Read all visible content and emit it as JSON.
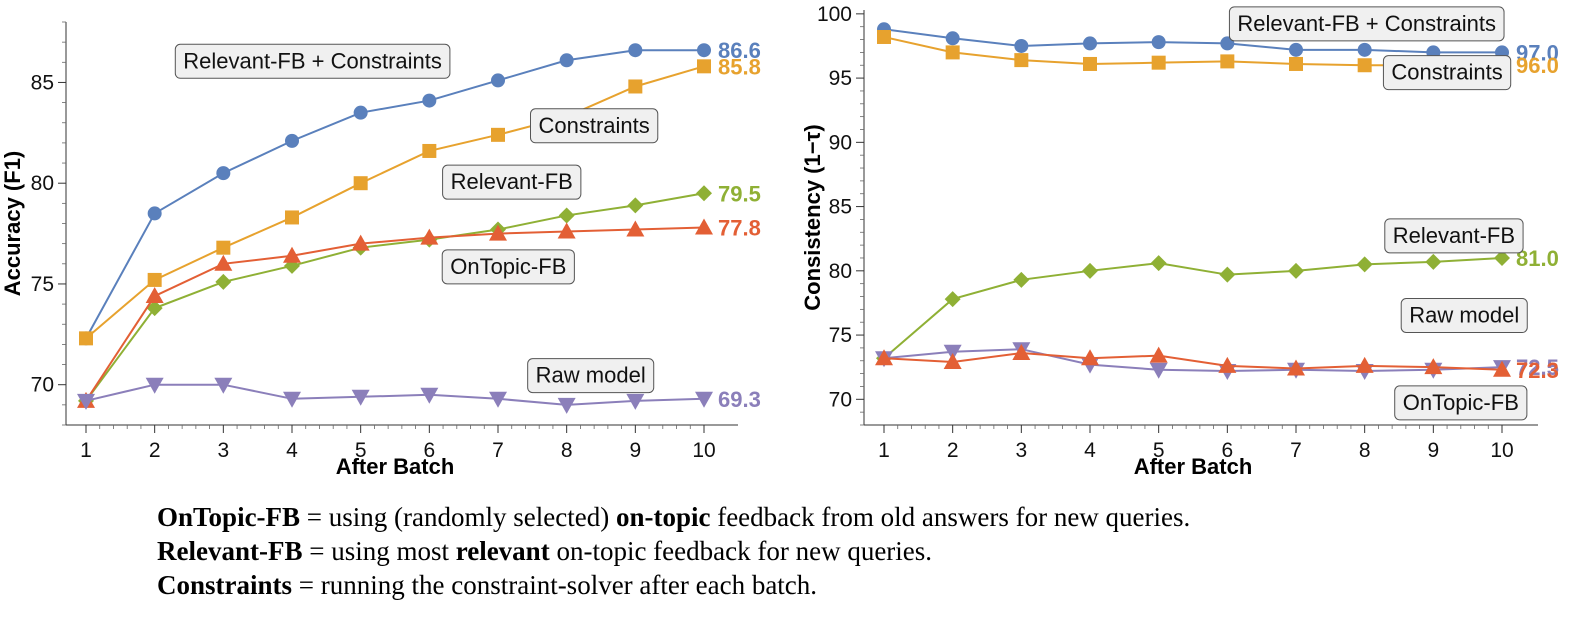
{
  "colors": {
    "blue": "#5a80bc",
    "orange": "#e7a22e",
    "green": "#8fb035",
    "red": "#e35f35",
    "purple": "#8b7fba"
  },
  "chart_data": [
    {
      "type": "line",
      "ylabel": "Accuracy (F1)",
      "xlabel": "After Batch",
      "x": [
        1,
        2,
        3,
        4,
        5,
        6,
        7,
        8,
        9,
        10
      ],
      "xticks": [
        "1",
        "2",
        "3",
        "4",
        "5",
        "6",
        "7",
        "8",
        "9",
        "10"
      ],
      "yticks": [
        "70",
        "75",
        "80",
        "85"
      ],
      "ytick_values": [
        70,
        75,
        80,
        85
      ],
      "ylim": [
        68,
        88
      ],
      "series": [
        {
          "name": "Relevant-FB + Constraints",
          "color": "blue",
          "marker": "circle",
          "values": [
            72.3,
            78.5,
            80.5,
            82.1,
            83.5,
            84.1,
            85.1,
            86.1,
            86.6,
            86.6
          ],
          "end_label": "86.6"
        },
        {
          "name": "Constraints",
          "color": "orange",
          "marker": "square",
          "values": [
            72.3,
            75.2,
            76.8,
            78.3,
            80.0,
            81.6,
            82.4,
            83.3,
            84.8,
            85.8
          ],
          "end_label": "85.8"
        },
        {
          "name": "Relevant-FB",
          "color": "green",
          "marker": "diamond",
          "values": [
            69.2,
            73.8,
            75.1,
            75.9,
            76.8,
            77.2,
            77.7,
            78.4,
            78.9,
            79.5
          ],
          "end_label": "79.5"
        },
        {
          "name": "OnTopic-FB",
          "color": "red",
          "marker": "triangle-up",
          "values": [
            69.2,
            74.4,
            76.0,
            76.4,
            77.0,
            77.3,
            77.5,
            77.6,
            77.7,
            77.8
          ],
          "end_label": "77.8"
        },
        {
          "name": "Raw model",
          "color": "purple",
          "marker": "triangle-down",
          "values": [
            69.2,
            70.0,
            70.0,
            69.3,
            69.4,
            69.5,
            69.3,
            69.0,
            69.2,
            69.3
          ],
          "end_label": "69.3"
        }
      ],
      "annotations": [
        {
          "text": "Relevant-FB + Constraints",
          "at_x": 4.3,
          "at_y": 86.1
        },
        {
          "text": "Constraints",
          "at_x": 8.4,
          "at_y": 82.9
        },
        {
          "text": "Relevant-FB",
          "at_x": 7.2,
          "at_y": 80.1
        },
        {
          "text": "OnTopic-FB",
          "at_x": 7.15,
          "at_y": 75.9
        },
        {
          "text": "Raw model",
          "at_x": 8.35,
          "at_y": 70.5
        }
      ]
    },
    {
      "type": "line",
      "ylabel": "Consistency (1−τ)",
      "xlabel": "After Batch",
      "x": [
        1,
        2,
        3,
        4,
        5,
        6,
        7,
        8,
        9,
        10
      ],
      "xticks": [
        "1",
        "2",
        "3",
        "4",
        "5",
        "6",
        "7",
        "8",
        "9",
        "10"
      ],
      "yticks": [
        "70",
        "75",
        "80",
        "85",
        "90",
        "95",
        "100"
      ],
      "ytick_values": [
        70,
        75,
        80,
        85,
        90,
        95,
        100
      ],
      "ylim": [
        68,
        100.3
      ],
      "series": [
        {
          "name": "Relevant-FB + Constraints",
          "color": "blue",
          "marker": "circle",
          "values": [
            98.8,
            98.1,
            97.5,
            97.7,
            97.8,
            97.7,
            97.2,
            97.2,
            97.0,
            97.0
          ],
          "end_label": "97.0"
        },
        {
          "name": "Constraints",
          "color": "orange",
          "marker": "square",
          "values": [
            98.2,
            97.0,
            96.4,
            96.1,
            96.2,
            96.3,
            96.1,
            96.0,
            96.0,
            96.0
          ],
          "end_label": "96.0"
        },
        {
          "name": "Relevant-FB",
          "color": "green",
          "marker": "diamond",
          "values": [
            73.2,
            77.8,
            79.3,
            80.0,
            80.6,
            79.7,
            80.0,
            80.5,
            80.7,
            81.0
          ],
          "end_label": "81.0"
        },
        {
          "name": "Raw model",
          "color": "purple",
          "marker": "triangle-down",
          "values": [
            73.2,
            73.7,
            73.9,
            72.7,
            72.3,
            72.2,
            72.3,
            72.2,
            72.3,
            72.5
          ],
          "end_label": "72.5"
        },
        {
          "name": "OnTopic-FB",
          "color": "red",
          "marker": "triangle-up",
          "values": [
            73.2,
            72.9,
            73.6,
            73.2,
            73.4,
            72.6,
            72.4,
            72.6,
            72.5,
            72.3
          ],
          "end_label": "72.3"
        }
      ],
      "annotations": [
        {
          "text": "Relevant-FB + Constraints",
          "at_x": 8.03,
          "at_y": 99.3
        },
        {
          "text": "Constraints",
          "at_x": 9.2,
          "at_y": 95.5
        },
        {
          "text": "Relevant-FB",
          "at_x": 9.3,
          "at_y": 82.8
        },
        {
          "text": "Raw model",
          "at_x": 9.45,
          "at_y": 76.6
        },
        {
          "text": "OnTopic-FB",
          "at_x": 9.4,
          "at_y": 69.8
        }
      ]
    }
  ],
  "legend": [
    {
      "term": "OnTopic-FB",
      "text_before": " = using (randomly selected) ",
      "bold_word": "on-topic",
      "text_after": " feedback from old answers for new queries."
    },
    {
      "term": "Relevant-FB",
      "text_before": " = using most ",
      "bold_word": "relevant",
      "text_after": " on-topic feedback for new queries."
    },
    {
      "term": "Constraints",
      "text_before": " = running the constraint-solver after each batch.",
      "bold_word": "",
      "text_after": ""
    }
  ]
}
